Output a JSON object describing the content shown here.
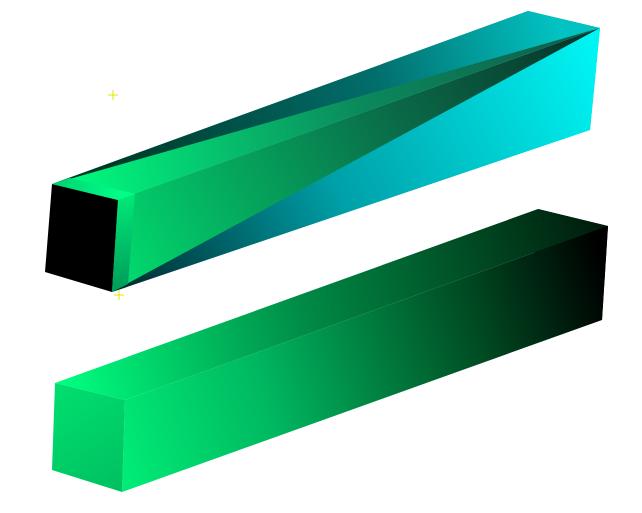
{
  "scene": {
    "background": "#ffffff",
    "objects": [
      {
        "name": "upper-twisted-box",
        "colors": {
          "front_end_face": "#000000",
          "top_face_start": "#00ff80",
          "top_face_end": "#0a7a55",
          "side_face_start": "#003a40",
          "side_face_end": "#00f0f0",
          "end_cap": "#00e8ee",
          "lower_edge_band": "#0a6a50"
        }
      },
      {
        "name": "lower-box",
        "colors": {
          "top_face_start": "#00e070",
          "top_face_end": "#002a10",
          "front_face_start": "#00ff80",
          "front_face_end": "#000000",
          "end_cap": "#000000"
        }
      }
    ],
    "markers": [
      {
        "name": "light-marker",
        "color": "#e6e600",
        "glyph": "+"
      },
      {
        "name": "pivot-marker",
        "color": "#e6e600",
        "glyph": "+"
      }
    ]
  }
}
